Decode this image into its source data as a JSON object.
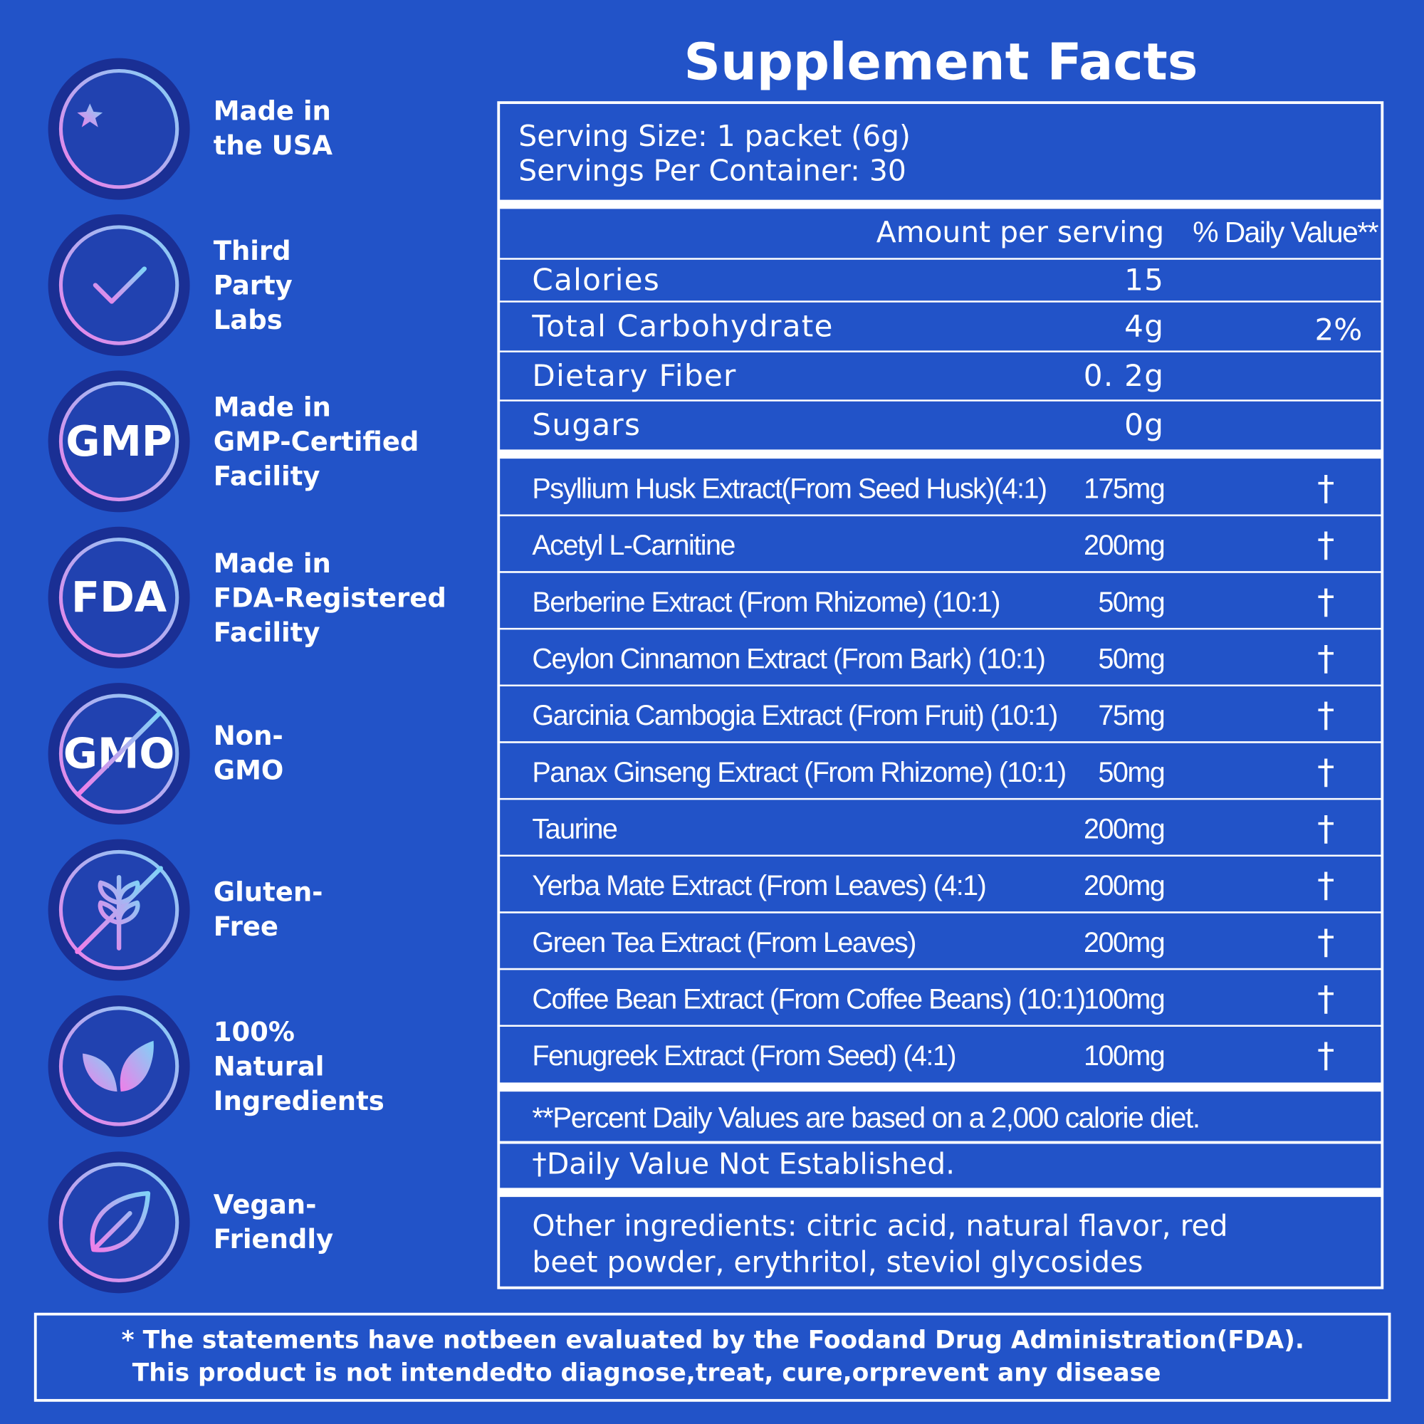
{
  "badges": [
    {
      "lines": [
        "Made in",
        "the USA"
      ]
    },
    {
      "lines": [
        "Third",
        "Party",
        "Labs"
      ]
    },
    {
      "icon_text": "GMP",
      "lines": [
        "Made in",
        "GMP-Certified",
        "Facility"
      ]
    },
    {
      "icon_text": "FDA",
      "lines": [
        "Made in",
        "FDA-Registered",
        "Facility"
      ]
    },
    {
      "icon_text": "GMO",
      "lines": [
        "Non-",
        "GMO"
      ]
    },
    {
      "lines": [
        "Gluten-",
        "Free"
      ]
    },
    {
      "lines": [
        "100%",
        "Natural",
        "Ingredients"
      ]
    },
    {
      "lines": [
        "Vegan-",
        "Friendly"
      ]
    }
  ],
  "facts": {
    "title": "Supplement Facts",
    "serving_size": "Serving Size: 1 packet (6g)",
    "servings_per_container": "Servings Per Container: 30",
    "header": {
      "amount": "Amount per serving",
      "daily_value": "% Daily Value**"
    },
    "nutrients": [
      [
        "Calories",
        "15",
        ""
      ],
      [
        "Total Carbohydrate",
        "4g",
        "2%"
      ],
      [
        "Dietary Fiber",
        "0. 2g",
        ""
      ],
      [
        "Sugars",
        "0g",
        ""
      ]
    ],
    "ingredients": [
      [
        "Psyllium Husk Extract(From Seed Husk)(4:1)",
        "175mg",
        "†"
      ],
      [
        "Acetyl L-Carnitine",
        "200mg",
        "†"
      ],
      [
        "Berberine Extract (From Rhizome) (10:1)",
        "50mg",
        "†"
      ],
      [
        "Ceylon Cinnamon Extract (From Bark) (10:1)",
        "50mg",
        "†"
      ],
      [
        "Garcinia Cambogia Extract (From Fruit) (10:1)",
        "75mg",
        "†"
      ],
      [
        "Panax Ginseng Extract (From Rhizome) (10:1)",
        "50mg",
        "†"
      ],
      [
        "Taurine",
        "200mg",
        "†"
      ],
      [
        "Yerba Mate Extract (From Leaves) (4:1)",
        "200mg",
        "†"
      ],
      [
        "Green Tea Extract (From Leaves)",
        "200mg",
        "†"
      ],
      [
        "Coffee Bean Extract (From Coffee Beans) (10:1)",
        "100mg",
        "†"
      ],
      [
        "Fenugreek Extract (From Seed) (4:1)",
        "100mg",
        "†"
      ]
    ],
    "footnotes": [
      "**Percent Daily Values are based on a 2,000 calorie diet.",
      "†Daily Value Not Established."
    ],
    "other_ingredients": [
      "Other ingredients: citric acid, natural flavor, red",
      "beet powder, erythritol, steviol glycosides"
    ]
  },
  "disclaimer": [
    "* The statements have notbeen evaluated by the Foodand Drug Administration(FDA).",
    "This product is not intendedto diagnose,treat, cure,orprevent any disease"
  ]
}
